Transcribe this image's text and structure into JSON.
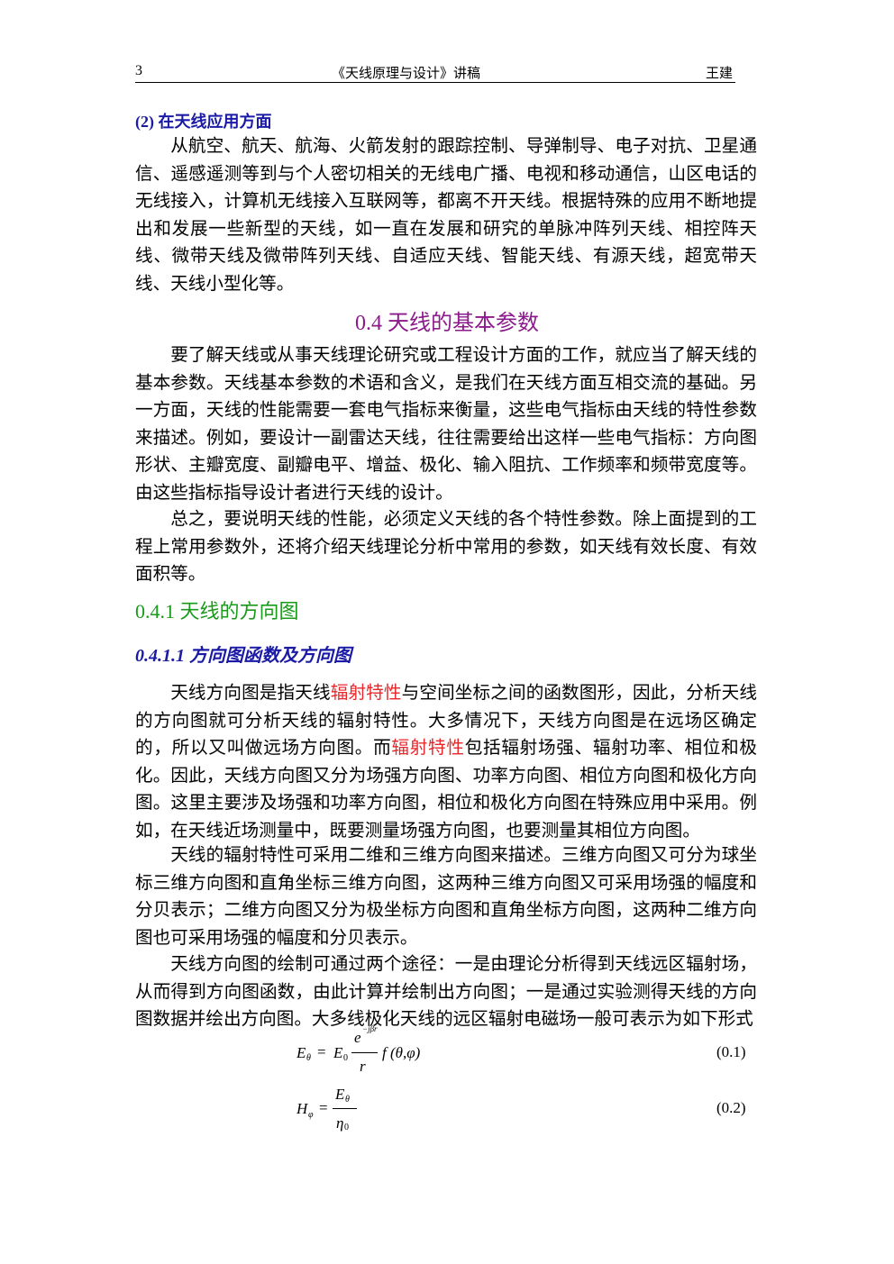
{
  "header": {
    "page_number": "3",
    "title": "《天线原理与设计》讲稿",
    "author": "王建"
  },
  "section_2": {
    "heading": "(2) 在天线应用方面",
    "paragraph": "从航空、航天、航海、火箭发射的跟踪控制、导弹制导、电子对抗、卫星通信、遥感遥测等到与个人密切相关的无线电广播、电视和移动通信，山区电话的无线接入，计算机无线接入互联网等，都离不开天线。根据特殊的应用不断地提出和发展一些新型的天线，如一直在发展和研究的单脉冲阵列天线、相控阵天线、微带天线及微带阵列天线、自适应天线、智能天线、有源天线，超宽带天线、天线小型化等。"
  },
  "section_0_4": {
    "heading": "0.4  天线的基本参数",
    "paragraphs": [
      "要了解天线或从事天线理论研究或工程设计方面的工作，就应当了解天线的基本参数。天线基本参数的术语和含义，是我们在天线方面互相交流的基础。另一方面，天线的性能需要一套电气指标来衡量，这些电气指标由天线的特性参数来描述。例如，要设计一副雷达天线，往往需要给出这样一些电气指标：方向图形状、主瓣宽度、副瓣电平、增益、极化、输入阻抗、工作频率和频带宽度等。由这些指标指导设计者进行天线的设计。",
      "总之，要说明天线的性能，必须定义天线的各个特性参数。除上面提到的工程上常用参数外，还将介绍天线理论分析中常用的参数，如天线有效长度、有效面积等。"
    ]
  },
  "section_0_4_1": {
    "heading": "0.4.1  天线的方向图"
  },
  "section_0_4_1_1": {
    "heading": "0.4.1.1  方向图函数及方向图",
    "paragraph_1": [
      "天线方向图是指天线",
      "辐射特性",
      "与空间坐标之间的函数图形，因此，分析天线的方向图就可分析天线的辐射特性。大多情况下，天线方向图是在远场区确定的，所以又叫做远场方向图。而",
      "辐射特性",
      "包括辐射场强、辐射功率、相位和极化。因此，天线方向图又分为场强方向图、功率方向图、相位方向图和极化方向图。这里主要涉及场强和功率方向图，相位和极化方向图在特殊应用中采用。例如，在天线近场测量中，既要测量场强方向图，也要测量其相位方向图。"
    ],
    "paragraph_2": "天线的辐射特性可采用二维和三维方向图来描述。三维方向图又可分为球坐标三维方向图和直角坐标三维方向图，这两种三维方向图又可采用场强的幅度和分贝表示；二维方向图又分为极坐标方向图和直角坐标方向图，这两种二维方向图也可采用场强的幅度和分贝表示。",
    "paragraph_3": "天线方向图的绘制可通过两个途径：一是由理论分析得到天线远区辐射场，从而得到方向图函数，由此计算并绘制出方向图；一是通过实验测得天线的方向图数据并绘出方向图。大多线极化天线的远区辐射电磁场一般可表示为如下形式"
  },
  "equations": [
    {
      "lhs": "E",
      "lhs_sub": "θ",
      "equals": "=",
      "prefix": "E",
      "prefix_sub": "0",
      "numerator": "e",
      "numerator_sup": "−jβr",
      "denominator": "r",
      "function": "f (θ,φ)",
      "number": "(0.1)"
    },
    {
      "lhs": "H",
      "lhs_sub": "φ",
      "equals": "=",
      "numerator": "E",
      "numerator_sub": "θ",
      "denominator": "η",
      "denominator_sub": "0",
      "number": "(0.2)"
    }
  ]
}
